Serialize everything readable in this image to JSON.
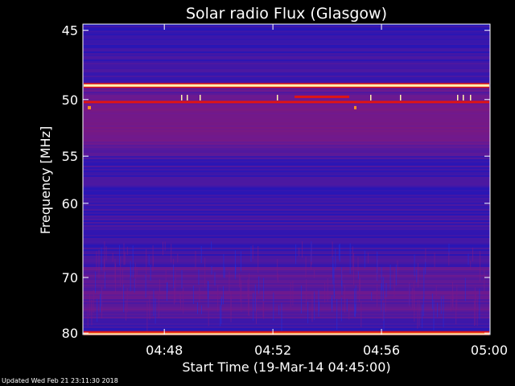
{
  "chart_data": {
    "type": "heatmap",
    "title": "Solar radio Flux (Glasgow)",
    "xlabel": "Start Time (19-Mar-14 04:45:00)",
    "ylabel": "Frequency [MHz]",
    "x_ticks": [
      "04:48",
      "04:52",
      "04:56",
      "05:00"
    ],
    "y_ticks": [
      45,
      50,
      55,
      60,
      70,
      80
    ],
    "xlim": [
      "04:45:00",
      "05:00:00"
    ],
    "ylim": [
      80.3,
      44.6
    ],
    "y_scale": "reciprocal",
    "grid": false,
    "colors": {
      "low": "#0a14c8",
      "mid": "#7a1a8a",
      "high": "#e01414",
      "peak": "#fff4b0"
    },
    "bright_bands_mhz": [
      48.9,
      50.2,
      80.1
    ]
  },
  "footer": {
    "updated": "Updated Wed Feb 21 23:11:30 2018"
  }
}
